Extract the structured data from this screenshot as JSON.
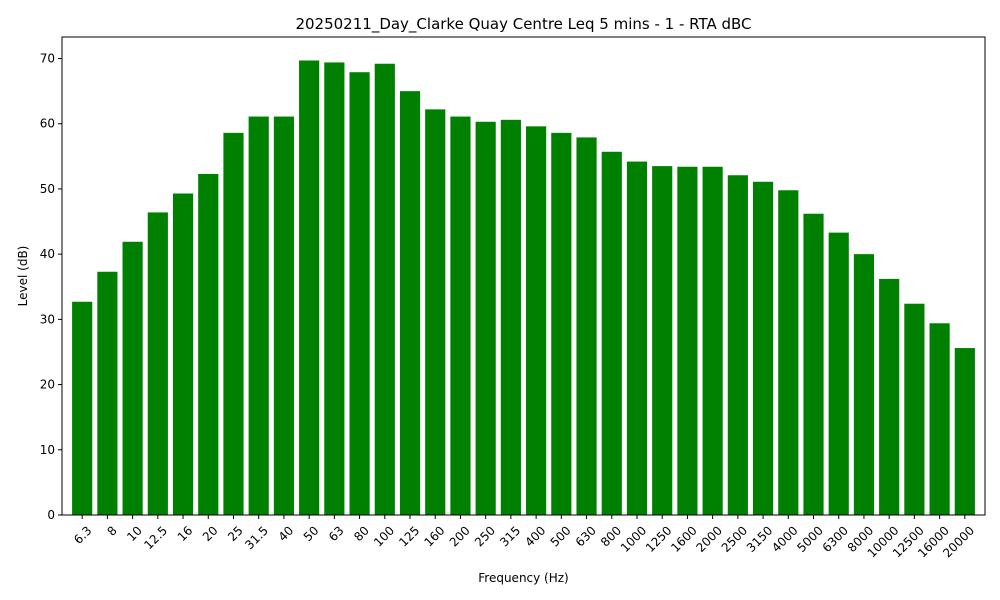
{
  "chart_data": {
    "type": "bar",
    "title": "20250211_Day_Clarke Quay Centre Leq 5 mins - 1 - RTA dBC",
    "xlabel": "Frequency (Hz)",
    "ylabel": "Level (dB)",
    "ylim": [
      0,
      73.3
    ],
    "yticks": [
      0,
      10,
      20,
      30,
      40,
      50,
      60,
      70
    ],
    "grid": false,
    "bar_color": "#008000",
    "categories": [
      "6.3",
      "8",
      "10",
      "12.5",
      "16",
      "20",
      "25",
      "31.5",
      "40",
      "50",
      "63",
      "80",
      "100",
      "125",
      "160",
      "200",
      "250",
      "315",
      "400",
      "500",
      "630",
      "800",
      "1000",
      "1250",
      "1600",
      "2000",
      "2500",
      "3150",
      "4000",
      "5000",
      "6300",
      "8000",
      "10000",
      "12500",
      "16000",
      "20000"
    ],
    "values": [
      32.7,
      37.3,
      41.9,
      46.4,
      49.3,
      52.3,
      58.6,
      61.1,
      61.1,
      69.7,
      69.4,
      67.9,
      69.2,
      65.0,
      62.2,
      61.1,
      60.3,
      60.6,
      59.6,
      58.6,
      57.9,
      55.7,
      54.2,
      53.5,
      53.4,
      53.4,
      52.1,
      51.1,
      49.8,
      46.2,
      43.3,
      40.0,
      36.2,
      32.4,
      29.4,
      25.6
    ]
  }
}
